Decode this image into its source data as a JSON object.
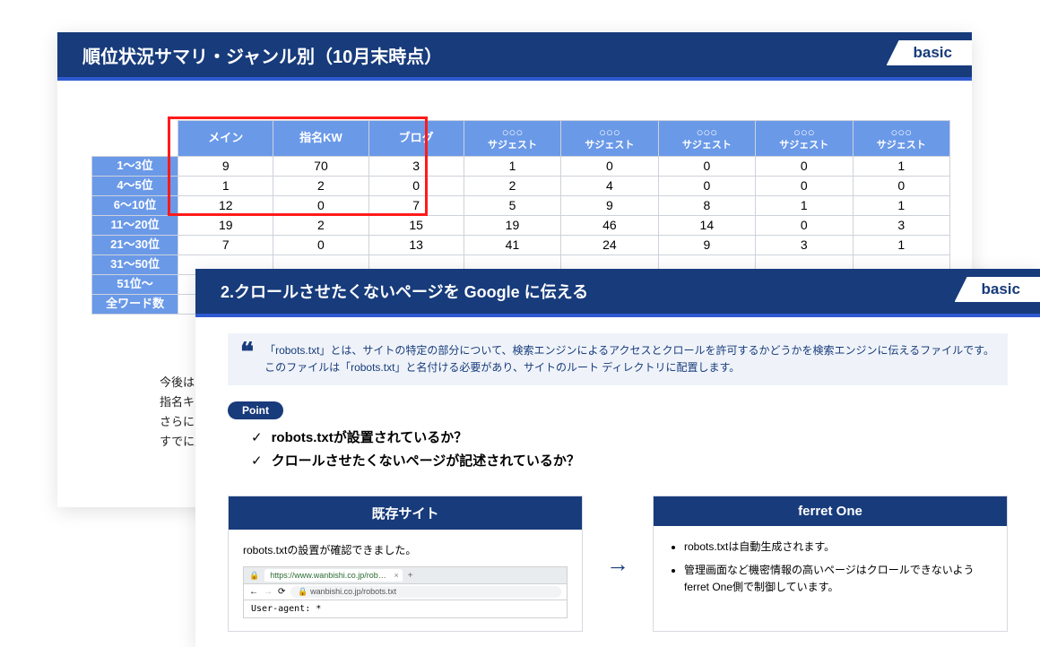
{
  "colors": {
    "brand_navy": "#173b7b",
    "brand_blue": "#2f59d1",
    "table_header_blue": "#6a99e8",
    "highlight_red": "#ff1a1a",
    "quote_bg": "#eff3f9"
  },
  "slide1": {
    "title": "順位状況サマリ・ジャンル別（10月末時点）",
    "badge": "basic",
    "type": "table",
    "columns": {
      "row_header": "",
      "main_cols": [
        "メイン",
        "指名KW",
        "ブログ"
      ],
      "suggest_cols": [
        {
          "top": "○○○",
          "bottom": "サジェスト"
        },
        {
          "top": "○○○",
          "bottom": "サジェスト"
        },
        {
          "top": "○○○",
          "bottom": "サジェスト"
        },
        {
          "top": "○○○",
          "bottom": "サジェスト"
        },
        {
          "top": "○○○",
          "bottom": "サジェスト"
        }
      ]
    },
    "rows": [
      {
        "label": "1～3位",
        "vals": [
          "9",
          "70",
          "3",
          "1",
          "0",
          "0",
          "0",
          "1"
        ]
      },
      {
        "label": "4～5位",
        "vals": [
          "1",
          "2",
          "0",
          "2",
          "4",
          "0",
          "0",
          "0"
        ]
      },
      {
        "label": "6～10位",
        "vals": [
          "12",
          "0",
          "7",
          "5",
          "9",
          "8",
          "1",
          "1"
        ]
      },
      {
        "label": "11～20位",
        "vals": [
          "19",
          "2",
          "15",
          "19",
          "46",
          "14",
          "0",
          "3"
        ]
      },
      {
        "label": "21～30位",
        "vals": [
          "7",
          "0",
          "13",
          "41",
          "24",
          "9",
          "3",
          "1"
        ]
      },
      {
        "label": "31～50位",
        "vals": [
          "",
          "",
          "",
          "",
          "",
          "",
          "",
          ""
        ]
      },
      {
        "label": "51位～",
        "vals": [
          "",
          "",
          "",
          "",
          "",
          "",
          "",
          ""
        ]
      },
      {
        "label": "全ワード数",
        "vals": [
          "",
          "",
          "",
          "",
          "",
          "",
          "",
          ""
        ]
      }
    ],
    "highlight_box": {
      "note": "red box around メイン/指名KW/ブログ header + rows 1-3"
    },
    "notes_lines": [
      "今後はメインカ",
      "指名キーワード",
      "さらに多くのキ",
      "すでに上位表示"
    ]
  },
  "slide2": {
    "title": "2.クロールさせたくないページを Google に伝える",
    "badge": "basic",
    "quote": "「robots.txt」とは、サイトの特定の部分について、検索エンジンによるアクセスとクロールを許可するかどうかを検索エンジンに伝えるファイルです。このファイルは「robots.txt」と名付ける必要があり、サイトのルート ディレクトリに配置します。",
    "point_label": "Point",
    "points": [
      "robots.txtが設置されているか？",
      "クロールさせたくないページが記述されているか？"
    ],
    "left_col": {
      "title": "既存サイト",
      "subtitle": "robots.txtの設置が確認できました。",
      "browser": {
        "tab": "https://www.wanbishi.co.jp/rob…",
        "url": "wanbishi.co.jp/robots.txt",
        "content": "User-agent: *"
      }
    },
    "right_col": {
      "title": "ferret One",
      "items": [
        "robots.txtは自動生成されます。",
        "管理画面など機密情報の高いページはクロールできないようferret One側で制御しています。"
      ]
    }
  }
}
